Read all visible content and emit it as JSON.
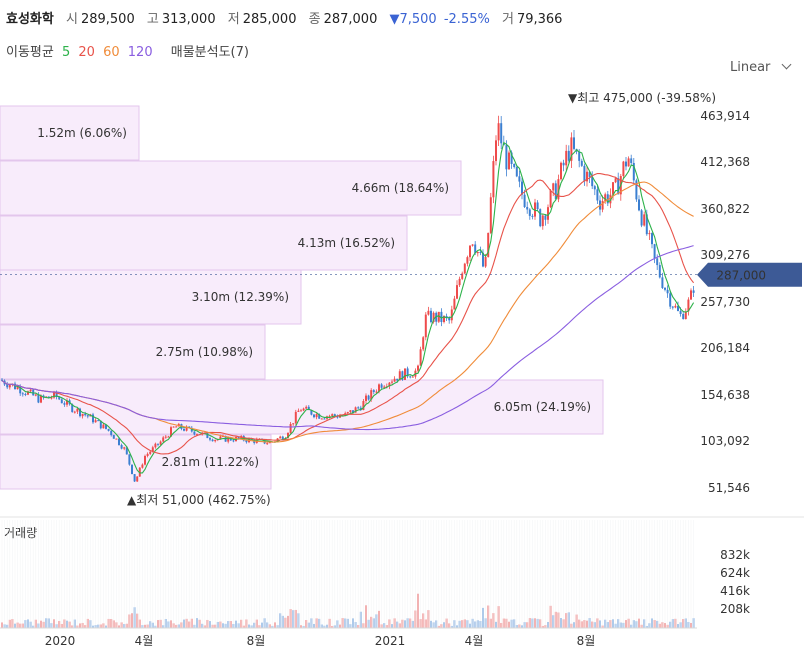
{
  "header": {
    "name": "효성화학",
    "open_label": "시",
    "open": "289,500",
    "high_label": "고",
    "high": "313,000",
    "low_label": "저",
    "low": "285,000",
    "close_label": "종",
    "close": "287,000",
    "change_arrow": "▼",
    "change": "7,500",
    "change_pct": "-2.55%",
    "volume_label": "거",
    "volume": "79,366"
  },
  "ma_legend": {
    "label": "이동평균",
    "periods": [
      {
        "text": "5",
        "color": "#2db24a"
      },
      {
        "text": "20",
        "color": "#e8534a"
      },
      {
        "text": "60",
        "color": "#f08c3a"
      },
      {
        "text": "120",
        "color": "#8a5ee0"
      }
    ],
    "profile_label": "매물분석도(7)"
  },
  "scale_mode": "Linear",
  "colors": {
    "up": "#ee4b4b",
    "down": "#3b7fd1",
    "profile": "#f8ecfb",
    "profile_border": "#e3c6ec",
    "price_tag": "#3d5a96"
  },
  "chart_data": {
    "type": "candlestick",
    "y_ticks": [
      "463,914",
      "412,368",
      "360,822",
      "309,276",
      "257,730",
      "206,184",
      "154,638",
      "103,092",
      "51,546"
    ],
    "x_ticks": [
      "2020",
      "4월",
      "8월",
      "2021",
      "4월",
      "8월"
    ],
    "current_price": "287,000",
    "max_label": {
      "arrow": "▼",
      "text": "최고",
      "value": "475,000",
      "pct": "(-39.58%)"
    },
    "min_label": {
      "arrow": "▲",
      "text": "최저",
      "value": "51,000",
      "pct": "(462.75%)"
    },
    "volume_profile": [
      {
        "label": "1.52m (6.06%)",
        "pct": 6.06
      },
      {
        "label": "4.66m (18.64%)",
        "pct": 18.64
      },
      {
        "label": "4.13m (16.52%)",
        "pct": 16.52
      },
      {
        "label": "3.10m (12.39%)",
        "pct": 12.39
      },
      {
        "label": "2.75m (10.98%)",
        "pct": 10.98
      },
      {
        "label": "6.05m (24.19%)",
        "pct": 24.19
      },
      {
        "label": "2.81m (11.22%)",
        "pct": 11.22
      }
    ],
    "volume_title": "거래량",
    "volume_ticks": [
      "832k",
      "624k",
      "416k",
      "208k"
    ]
  }
}
